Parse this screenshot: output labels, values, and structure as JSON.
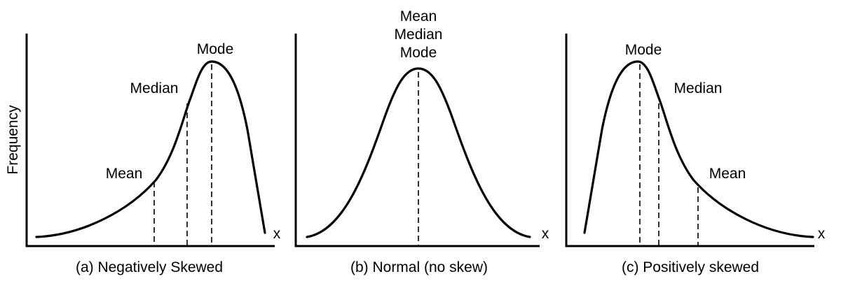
{
  "y_axis_label": "Frequency",
  "panels": [
    {
      "axis_label": "x",
      "caption": "(a) Negatively Skewed",
      "labels": [
        "Mode",
        "Median",
        "Mean"
      ]
    },
    {
      "axis_label": "x",
      "caption": "(b) Normal (no skew)",
      "labels": [
        "Mean",
        "Median",
        "Mode"
      ]
    },
    {
      "axis_label": "x",
      "caption": "(c) Positively skewed",
      "labels": [
        "Mode",
        "Median",
        "Mean"
      ]
    }
  ]
}
